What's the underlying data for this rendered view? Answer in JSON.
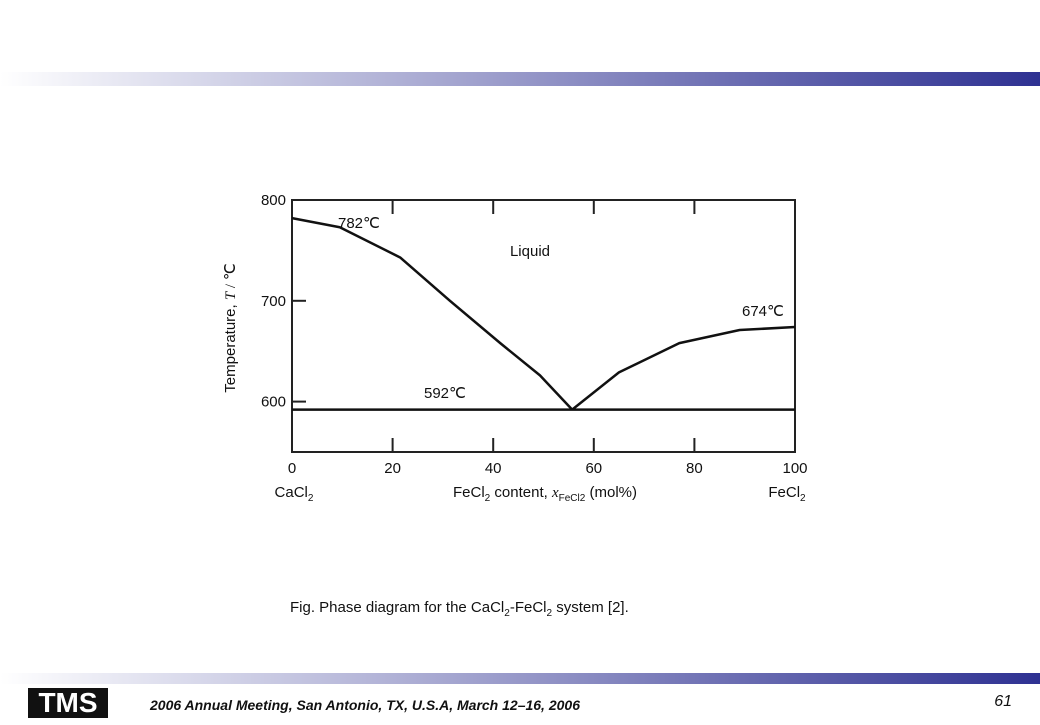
{
  "chart_data": {
    "type": "line",
    "series": [
      {
        "color": "#111111",
        "x": [
          0,
          9.5,
          21.5,
          31.4,
          41.4,
          49.3,
          55.7
        ],
        "values": [
          782,
          773,
          743,
          700,
          658,
          626,
          592
        ]
      },
      {
        "color": "#111111",
        "x": [
          55.7,
          65,
          77,
          89,
          100
        ],
        "values": [
          592,
          629,
          658,
          671,
          674
        ]
      },
      {
        "color": "#111111",
        "x": [
          0,
          100
        ],
        "values": [
          592,
          592
        ]
      }
    ],
    "xlim": [
      0,
      100
    ],
    "xticks": [
      0,
      20,
      40,
      60,
      80,
      100
    ],
    "ylim": [
      550,
      800
    ],
    "yticks": [
      600,
      700,
      800
    ],
    "ylabel": [
      "Temperature, ",
      "T",
      " / ℃"
    ],
    "xlabel": [
      "FeCl",
      "2",
      " content, ",
      "x",
      "FeCl2",
      " (mol%)"
    ],
    "x_left_label": [
      "CaCl",
      "2"
    ],
    "x_right_label": [
      "FeCl",
      "2"
    ],
    "annotations": [
      "782℃",
      "Liquid",
      "674℃",
      "592℃"
    ],
    "caption": [
      "Fig.  Phase diagram for the CaCl",
      "2",
      "-FeCl",
      "2",
      " system [2]."
    ]
  },
  "footer": {
    "logo": "TMS",
    "text": "2006 Annual Meeting, San Antonio, TX, U.S.A, March 12–16, 2006",
    "page": "61"
  }
}
